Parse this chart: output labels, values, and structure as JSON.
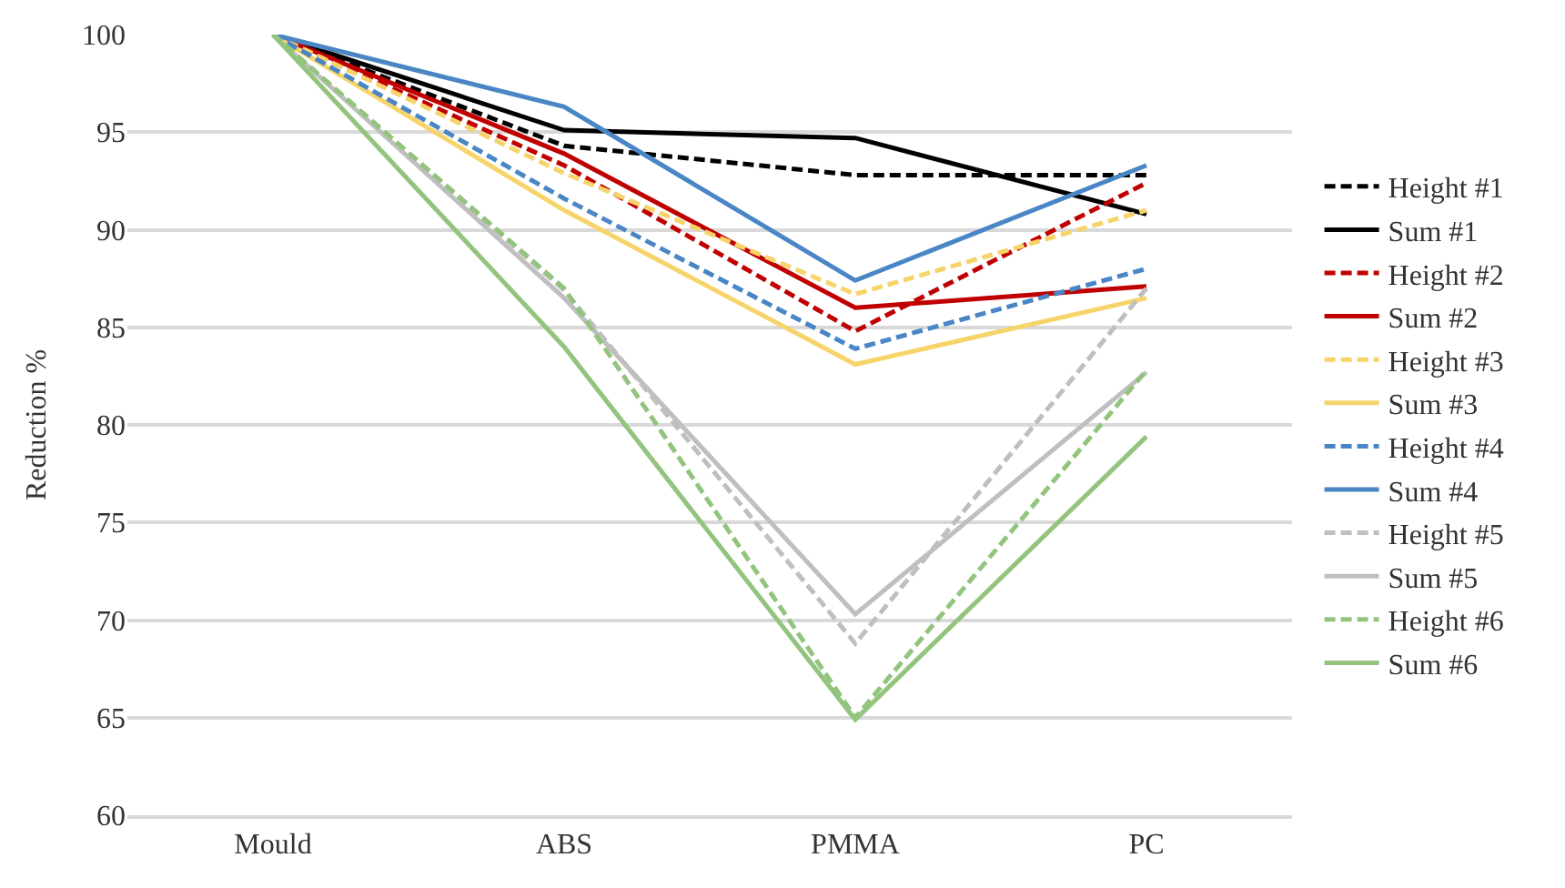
{
  "chart_data": {
    "type": "line",
    "ylabel": "Reduction %",
    "categories": [
      "Mould",
      "ABS",
      "PMMA",
      "PC"
    ],
    "ylim": [
      60,
      100
    ],
    "yticks": [
      60,
      65,
      70,
      75,
      80,
      85,
      90,
      95,
      100
    ],
    "grid": "y",
    "legend": "right",
    "marker": "none",
    "series": [
      {
        "name": "Height #1",
        "color": "#000000",
        "line_style": "dashed",
        "values": [
          100,
          94.3,
          92.8,
          92.8
        ]
      },
      {
        "name": "Sum #1",
        "color": "#000000",
        "line_style": "solid",
        "values": [
          100,
          95.1,
          94.7,
          90.8
        ]
      },
      {
        "name": "Height #2",
        "color": "#c00000",
        "line_style": "dashed",
        "values": [
          100,
          93.3,
          84.8,
          92.4
        ]
      },
      {
        "name": "Sum #2",
        "color": "#c00000",
        "line_style": "solid",
        "values": [
          100,
          93.9,
          86.0,
          87.1
        ]
      },
      {
        "name": "Height #3",
        "color": "#f7d46a",
        "line_style": "dashed",
        "values": [
          100,
          92.9,
          86.7,
          91.0
        ]
      },
      {
        "name": "Sum #3",
        "color": "#f7d46a",
        "line_style": "solid",
        "values": [
          100,
          91.0,
          83.1,
          86.5
        ]
      },
      {
        "name": "Height #4",
        "color": "#4a86c5",
        "line_style": "dashed",
        "values": [
          100,
          91.6,
          83.9,
          88.0
        ]
      },
      {
        "name": "Sum #4",
        "color": "#4a86c5",
        "line_style": "solid",
        "values": [
          100,
          96.3,
          87.4,
          93.3
        ]
      },
      {
        "name": "Height #5",
        "color": "#bfbfbf",
        "line_style": "dashed",
        "values": [
          100,
          86.9,
          68.8,
          87.0
        ]
      },
      {
        "name": "Sum #5",
        "color": "#bfbfbf",
        "line_style": "solid",
        "values": [
          100,
          86.5,
          70.3,
          82.7
        ]
      },
      {
        "name": "Height #6",
        "color": "#93c47d",
        "line_style": "dashed",
        "values": [
          100,
          87.0,
          65.0,
          82.8
        ]
      },
      {
        "name": "Sum #6",
        "color": "#93c47d",
        "line_style": "solid",
        "values": [
          100,
          84.0,
          64.9,
          79.4
        ]
      }
    ]
  }
}
